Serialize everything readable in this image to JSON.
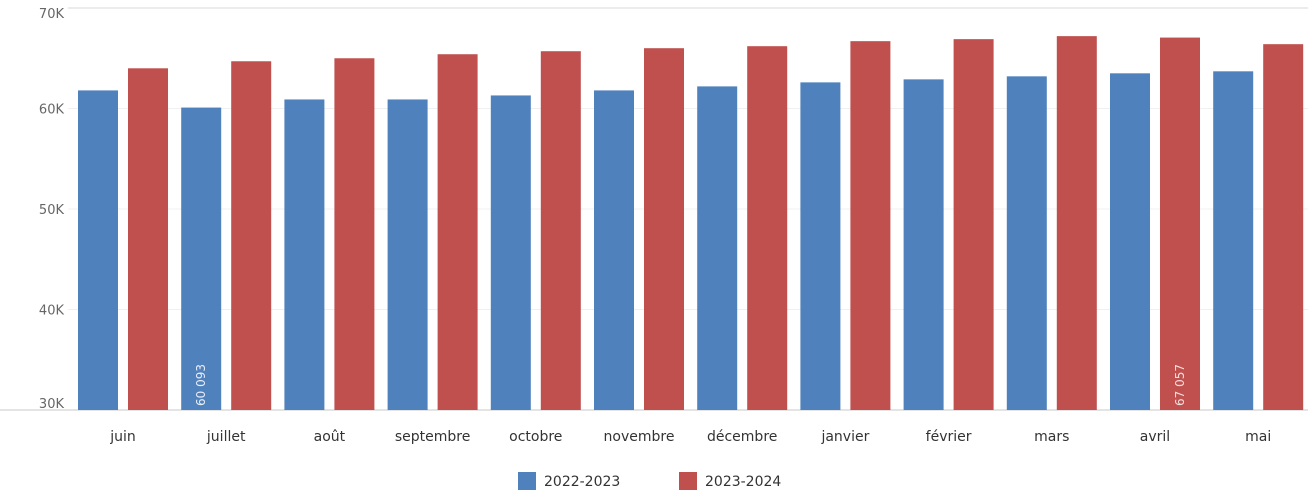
{
  "chart_data": {
    "type": "bar",
    "categories": [
      "juin",
      "juillet",
      "août",
      "septembre",
      "octobre",
      "novembre",
      "décembre",
      "janvier",
      "février",
      "mars",
      "avril",
      "mai"
    ],
    "series": [
      {
        "name": "2022-2023",
        "color": "#4f81bd",
        "values": [
          61800,
          60093,
          60900,
          60900,
          61300,
          61800,
          62200,
          62600,
          62900,
          63200,
          63500,
          63700
        ]
      },
      {
        "name": "2023-2024",
        "color": "#c0504d",
        "values": [
          64000,
          64700,
          65000,
          65400,
          65700,
          66000,
          66200,
          66700,
          66900,
          67200,
          67057,
          66400
        ]
      }
    ],
    "data_labels": [
      {
        "series": 0,
        "category": 1,
        "text": "60 093"
      },
      {
        "series": 1,
        "category": 10,
        "text": "67 057"
      }
    ],
    "y_ticks": [
      {
        "value": 30000,
        "label": "30K"
      },
      {
        "value": 40000,
        "label": "40K"
      },
      {
        "value": 50000,
        "label": "50K"
      },
      {
        "value": 60000,
        "label": "60K"
      },
      {
        "value": 70000,
        "label": "70K"
      }
    ],
    "ylim": [
      30000,
      70000
    ],
    "grid": true,
    "legend_position": "bottom-center",
    "title": "",
    "xlabel": "",
    "ylabel": ""
  }
}
